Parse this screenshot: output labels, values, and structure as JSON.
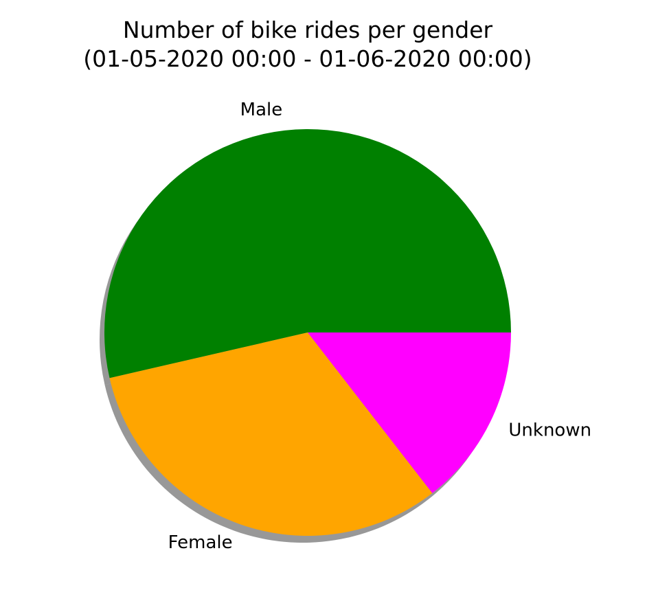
{
  "chart_data": {
    "type": "pie",
    "title": [
      "Number of bike rides per gender",
      "(01-05-2020 00:00 - 01-06-2020 00:00)"
    ],
    "categories": [
      "Male",
      "Female",
      "Unknown"
    ],
    "values": [
      53.6,
      31.9,
      14.5
    ],
    "colors": [
      "#008000",
      "#FFA500",
      "#FF00FF"
    ],
    "start_angle_deg": 0,
    "direction": "counterclockwise",
    "shadow": true
  }
}
